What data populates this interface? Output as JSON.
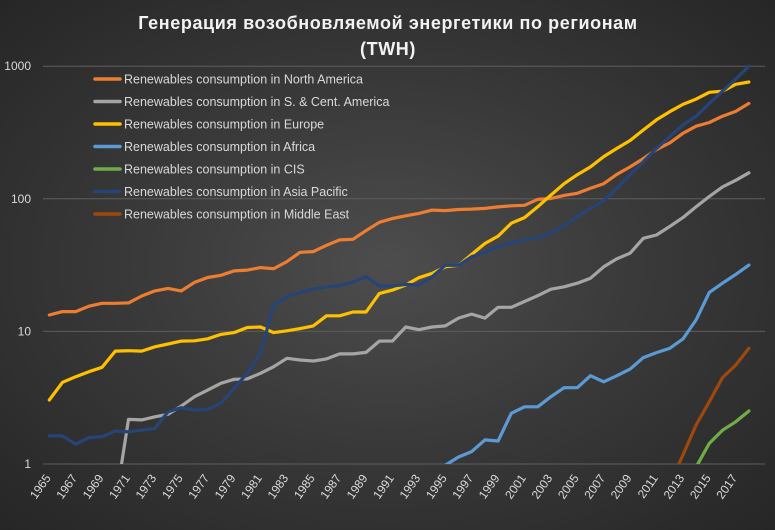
{
  "chart_data": {
    "type": "line",
    "title": "Генерация возобновляемой энергетики по регионам",
    "subtitle": "(TWH)",
    "xlabel": "",
    "ylabel": "",
    "yscale": "log",
    "ylim": [
      1,
      1000
    ],
    "yticks": [
      "1000",
      "100",
      "10",
      "1"
    ],
    "xlim": [
      1965,
      2018
    ],
    "xtick_labels": [
      "1965",
      "1967",
      "1969",
      "1971",
      "1973",
      "1975",
      "1977",
      "1979",
      "1981",
      "1983",
      "1985",
      "1987",
      "1989",
      "1991",
      "1993",
      "1995",
      "1997",
      "1999",
      "2001",
      "2003",
      "2005",
      "2007",
      "2009",
      "2011",
      "2013",
      "2015",
      "2017"
    ],
    "grid": "horizontal",
    "legend_position": "top-left",
    "x": [
      1965,
      1966,
      1967,
      1968,
      1969,
      1970,
      1971,
      1972,
      1973,
      1974,
      1975,
      1976,
      1977,
      1978,
      1979,
      1980,
      1981,
      1982,
      1983,
      1984,
      1985,
      1986,
      1987,
      1988,
      1989,
      1990,
      1991,
      1992,
      1993,
      1994,
      1995,
      1996,
      1997,
      1998,
      1999,
      2000,
      2001,
      2002,
      2003,
      2004,
      2005,
      2006,
      2007,
      2008,
      2009,
      2010,
      2011,
      2012,
      2013,
      2014,
      2015,
      2016,
      2017,
      2018
    ],
    "series": [
      {
        "name": "Renewables consumption in North America",
        "color": "#ED7D31",
        "values": [
          13.3,
          14.1,
          14.1,
          15.5,
          16.3,
          16.3,
          16.4,
          18.5,
          20.2,
          21.1,
          20.2,
          23.4,
          25.5,
          26.5,
          28.6,
          29,
          30.3,
          29.7,
          33.6,
          39.5,
          40,
          44.6,
          49,
          49.5,
          57.6,
          66.5,
          71,
          74.5,
          77.6,
          82.2,
          81.5,
          83,
          83.6,
          84.6,
          86.9,
          88.5,
          89.4,
          99,
          100.6,
          106,
          110,
          120,
          130,
          153,
          174,
          201,
          235,
          264,
          312,
          353,
          376,
          420,
          456,
          524
        ]
      },
      {
        "name": "Renewables consumption in S. & Cent. America",
        "color": "#A5A5A5",
        "values": [
          null,
          null,
          null,
          null,
          null,
          0.5,
          2.17,
          2.15,
          2.27,
          2.37,
          2.74,
          3.22,
          3.61,
          4.06,
          4.35,
          4.38,
          4.83,
          5.42,
          6.27,
          6.09,
          5.98,
          6.2,
          6.76,
          6.76,
          6.95,
          8.45,
          8.47,
          10.8,
          10.3,
          10.8,
          11.0,
          12.6,
          13.5,
          12.6,
          15.2,
          15.2,
          16.8,
          18.6,
          20.8,
          21.7,
          23.1,
          25.2,
          30.7,
          35.3,
          38.9,
          50.4,
          53.3,
          61.8,
          72.2,
          87,
          104,
          123,
          138,
          157
        ]
      },
      {
        "name": "Renewables consumption in Europe",
        "color": "#FFC000",
        "values": [
          3.04,
          4.13,
          4.55,
          4.97,
          5.36,
          7.1,
          7.15,
          7.1,
          7.66,
          8.03,
          8.45,
          8.5,
          8.8,
          9.5,
          9.8,
          10.7,
          10.8,
          9.8,
          10.1,
          10.5,
          11,
          13.1,
          13.1,
          14,
          14,
          19.3,
          20.5,
          22.4,
          25.4,
          27.4,
          30.7,
          31.5,
          38.1,
          46,
          52.3,
          65.5,
          72.2,
          87,
          106.6,
          130,
          152,
          174,
          208,
          240,
          275,
          330,
          394,
          454,
          515,
          565,
          636,
          648,
          730,
          760
        ]
      },
      {
        "name": "Renewables consumption in Africa",
        "color": "#5B9BD5",
        "values": [
          null,
          null,
          null,
          null,
          null,
          null,
          null,
          null,
          null,
          null,
          null,
          null,
          null,
          null,
          null,
          null,
          null,
          null,
          null,
          null,
          null,
          null,
          null,
          null,
          null,
          null,
          null,
          null,
          null,
          null,
          0.98,
          1.13,
          1.24,
          1.52,
          1.49,
          2.41,
          2.7,
          2.7,
          3.22,
          3.76,
          3.76,
          4.63,
          4.17,
          4.63,
          5.2,
          6.34,
          6.92,
          7.46,
          8.76,
          12.2,
          19.7,
          23.1,
          26.9,
          31.6
        ]
      },
      {
        "name": "Renewables consumption in CIS",
        "color": "#70AD47",
        "values": [
          null,
          null,
          null,
          null,
          null,
          null,
          null,
          null,
          null,
          null,
          null,
          null,
          null,
          null,
          null,
          null,
          null,
          null,
          null,
          null,
          null,
          null,
          null,
          null,
          null,
          null,
          null,
          null,
          null,
          null,
          null,
          null,
          null,
          null,
          null,
          null,
          null,
          null,
          null,
          null,
          null,
          null,
          null,
          null,
          null,
          null,
          null,
          null,
          0.6,
          0.95,
          1.43,
          1.8,
          2.08,
          2.51
        ]
      },
      {
        "name": "Renewables consumption in Asia Pacific",
        "color": "#264478",
        "values": [
          1.63,
          1.63,
          1.41,
          1.58,
          1.61,
          1.77,
          1.75,
          1.8,
          1.86,
          2.48,
          2.66,
          2.55,
          2.58,
          2.87,
          3.72,
          4.83,
          6.84,
          15.8,
          18.3,
          19.7,
          20.8,
          21.7,
          22.1,
          23.6,
          25.8,
          22,
          22,
          22.6,
          22.4,
          25.8,
          31.5,
          31.5,
          36.6,
          39.5,
          43.6,
          46.6,
          49,
          51,
          55,
          62,
          73.5,
          84.6,
          97,
          120,
          152,
          190,
          240,
          294,
          360,
          420,
          524,
          648,
          800,
          1000
        ]
      },
      {
        "name": "Renewables consumption in Middle East",
        "color": "#9E480E",
        "values": [
          null,
          null,
          null,
          null,
          null,
          null,
          null,
          null,
          null,
          null,
          null,
          null,
          null,
          null,
          null,
          null,
          null,
          null,
          null,
          null,
          null,
          null,
          null,
          null,
          null,
          null,
          null,
          null,
          null,
          null,
          null,
          null,
          null,
          null,
          null,
          null,
          null,
          null,
          null,
          null,
          null,
          null,
          null,
          null,
          null,
          null,
          null,
          0.7,
          1.17,
          1.97,
          2.95,
          4.48,
          5.57,
          7.46
        ]
      }
    ]
  }
}
